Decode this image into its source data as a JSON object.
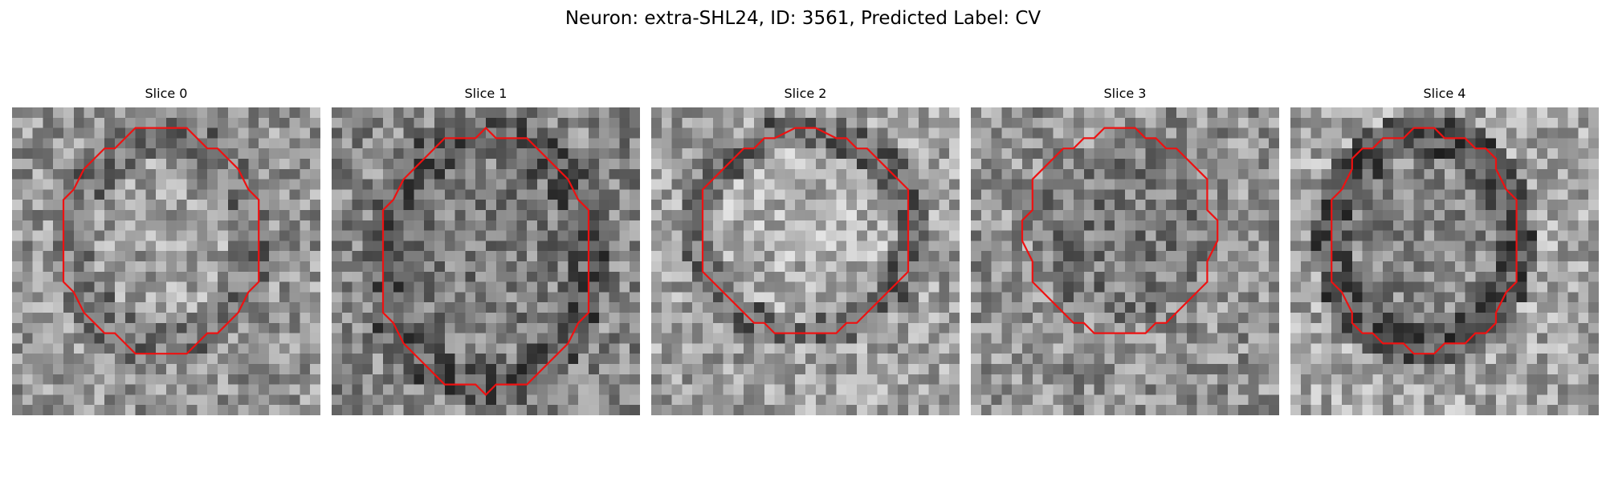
{
  "figure": {
    "title": "Neuron: extra-SHL24, ID: 3561, Predicted Label: CV"
  },
  "colors": {
    "background": "#ffffff",
    "roi_outline": "#ee1111",
    "text": "#000000"
  },
  "image": {
    "colormap": "grayscale",
    "grid_cells": 30
  },
  "slices": [
    {
      "label": "Slice 0",
      "center": [
        14.5,
        13.0
      ],
      "radius_x": 9.8,
      "radius_y": 10.9,
      "interior": "mixed",
      "seed": 11
    },
    {
      "label": "Slice 1",
      "center": [
        15.0,
        15.0
      ],
      "radius_x": 10.3,
      "radius_y": 12.6,
      "interior": "mixed-dark-ring",
      "seed": 23
    },
    {
      "label": "Slice 2",
      "center": [
        15.0,
        12.2
      ],
      "radius_x": 10.3,
      "radius_y": 9.8,
      "interior": "light",
      "seed": 37
    },
    {
      "label": "Slice 3",
      "center": [
        14.5,
        12.2
      ],
      "radius_x": 9.3,
      "radius_y": 9.8,
      "interior": "mixed-dark",
      "seed": 41
    },
    {
      "label": "Slice 4",
      "center": [
        13.0,
        13.0
      ],
      "radius_x": 9.3,
      "radius_y": 10.8,
      "interior": "dark-ring",
      "seed": 59
    }
  ]
}
